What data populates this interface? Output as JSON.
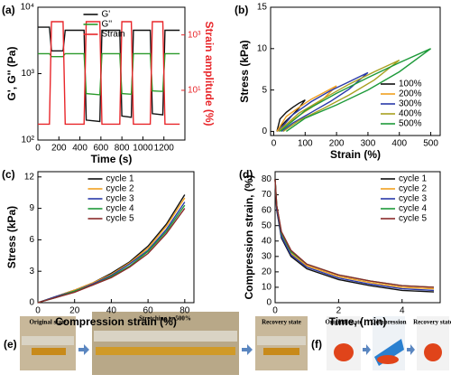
{
  "chart_data": [
    {
      "type": "line",
      "panel_label": "(a)",
      "xlabel": "Time (s)",
      "ylabel": "G', G'' (Pa)",
      "y2label": "Strain amplitude (%)",
      "xlim": [
        0,
        1400
      ],
      "xticks": [
        0,
        200,
        400,
        600,
        800,
        1000,
        1200
      ],
      "ylim": [
        100,
        10000
      ],
      "ylog": true,
      "yticks": [
        {
          "value": 100,
          "label": "10²"
        },
        {
          "value": 1000,
          "label": "10³"
        },
        {
          "value": 10000,
          "label": "10⁴"
        }
      ],
      "y2lim": [
        0.16,
        10000
      ],
      "y2log": true,
      "y2ticks": [
        {
          "value": 10,
          "label": "10¹"
        },
        {
          "value": 1000,
          "label": "10³"
        }
      ],
      "y2_color": "#e8262a",
      "legend": "upper center",
      "x": [
        0,
        110,
        130,
        240,
        260,
        440,
        460,
        590,
        610,
        780,
        800,
        890,
        910,
        1070,
        1090,
        1190,
        1210,
        1350
      ],
      "series": [
        {
          "name": "G'",
          "color": "#111111",
          "values": [
            5000,
            5000,
            2200,
            2200,
            4500,
            4500,
            200,
            190,
            4500,
            4500,
            230,
            220,
            4500,
            4500,
            250,
            240,
            4500,
            4500
          ]
        },
        {
          "name": "G''",
          "color": "#2a9a2a",
          "values": [
            2000,
            2000,
            1800,
            1800,
            2000,
            2000,
            500,
            480,
            2000,
            2000,
            500,
            490,
            2000,
            2000,
            550,
            540,
            2000,
            2000
          ]
        },
        {
          "name": "Strain",
          "color": "#e8262a",
          "axis": "y2",
          "values": [
            0.6,
            0.6,
            3000,
            3000,
            0.6,
            0.6,
            3000,
            3000,
            0.6,
            0.6,
            3000,
            3000,
            0.6,
            0.6,
            3000,
            3000,
            0.6,
            0.6
          ]
        }
      ]
    },
    {
      "type": "line",
      "panel_label": "(b)",
      "xlabel": "Strain (%)",
      "ylabel": "Stress (kPa)",
      "xlim": [
        -10,
        530
      ],
      "xticks": [
        0,
        100,
        200,
        300,
        400,
        500
      ],
      "ylim": [
        -0.5,
        15
      ],
      "yticks": [
        0,
        5,
        10,
        15
      ],
      "legend": "lower right",
      "series": [
        {
          "name": "100%",
          "color": "#111111",
          "x": [
            10,
            20,
            40,
            60,
            80,
            100,
            80,
            60,
            40,
            20,
            10
          ],
          "values": [
            0,
            1.5,
            2.3,
            2.9,
            3.4,
            3.8,
            2.8,
            2.0,
            1.3,
            0.5,
            0
          ]
        },
        {
          "name": "200%",
          "color": "#f0a020",
          "x": [
            10,
            40,
            80,
            120,
            160,
            200,
            160,
            120,
            80,
            40,
            15
          ],
          "values": [
            0,
            1.8,
            2.9,
            3.9,
            4.7,
            5.5,
            4.0,
            2.9,
            1.9,
            0.8,
            0
          ]
        },
        {
          "name": "300%",
          "color": "#2a3aa8",
          "x": [
            15,
            60,
            120,
            180,
            240,
            300,
            240,
            180,
            120,
            60,
            25
          ],
          "values": [
            0,
            2.0,
            3.6,
            4.9,
            6.0,
            7.1,
            5.1,
            3.6,
            2.3,
            1.0,
            0
          ]
        },
        {
          "name": "400%",
          "color": "#a8a020",
          "x": [
            15,
            80,
            160,
            240,
            320,
            400,
            320,
            240,
            160,
            80,
            30
          ],
          "values": [
            0,
            2.2,
            4.0,
            5.7,
            7.2,
            8.6,
            6.2,
            4.4,
            2.8,
            1.3,
            0
          ]
        },
        {
          "name": "500%",
          "color": "#1e9a3a",
          "x": [
            20,
            100,
            200,
            300,
            400,
            500,
            400,
            300,
            200,
            100,
            40
          ],
          "values": [
            0,
            2.5,
            4.6,
            6.5,
            8.3,
            10,
            7.2,
            5.0,
            3.2,
            1.6,
            0
          ]
        }
      ]
    },
    {
      "type": "line",
      "panel_label": "(c)",
      "xlabel": "Compression strain (%)",
      "ylabel": "Stress (kPa)",
      "xlim": [
        0,
        85
      ],
      "xticks": [
        0,
        20,
        40,
        60,
        80
      ],
      "ylim": [
        0,
        12.5
      ],
      "yticks": [
        0,
        3,
        6,
        9,
        12
      ],
      "legend": "upper center",
      "x": [
        0,
        10,
        20,
        30,
        40,
        50,
        60,
        70,
        80
      ],
      "series": [
        {
          "name": "cycle 1",
          "color": "#111111",
          "values": [
            0,
            0.6,
            1.2,
            1.9,
            2.8,
            3.9,
            5.4,
            7.5,
            10.3
          ]
        },
        {
          "name": "cycle 2",
          "color": "#f0a020",
          "values": [
            0,
            0.6,
            1.2,
            1.9,
            2.7,
            3.8,
            5.2,
            7.3,
            10.0
          ]
        },
        {
          "name": "cycle 3",
          "color": "#2a3aa8",
          "values": [
            0,
            0.6,
            1.1,
            1.8,
            2.6,
            3.7,
            5.0,
            7.0,
            9.6
          ]
        },
        {
          "name": "cycle 4",
          "color": "#1e9a3a",
          "values": [
            0,
            0.5,
            1.1,
            1.7,
            2.5,
            3.5,
            4.9,
            6.8,
            9.3
          ]
        },
        {
          "name": "cycle 5",
          "color": "#8a2a2a",
          "values": [
            0,
            0.5,
            1.0,
            1.7,
            2.4,
            3.4,
            4.7,
            6.6,
            9.0
          ]
        }
      ]
    },
    {
      "type": "line",
      "panel_label": "(d)",
      "xlabel": "Time, (min)",
      "ylabel": "Compression strain, (%)",
      "xlim": [
        0,
        5.2
      ],
      "xticks": [
        0,
        2,
        4
      ],
      "ylim": [
        0,
        85
      ],
      "yticks": [
        0,
        10,
        20,
        30,
        40,
        50,
        60,
        70,
        80
      ],
      "legend": "upper right",
      "x": [
        0,
        0.05,
        0.2,
        0.5,
        1,
        2,
        3,
        4,
        5
      ],
      "series": [
        {
          "name": "cycle 1",
          "color": "#111111",
          "values": [
            80,
            60,
            42,
            30,
            22,
            15,
            11,
            8,
            7
          ]
        },
        {
          "name": "cycle 2",
          "color": "#f0a020",
          "values": [
            80,
            62,
            44,
            32,
            24,
            17,
            13,
            10,
            9
          ]
        },
        {
          "name": "cycle 3",
          "color": "#2a3aa8",
          "values": [
            80,
            61,
            43,
            31,
            23,
            16,
            12,
            9,
            8
          ]
        },
        {
          "name": "cycle 4",
          "color": "#1e9a3a",
          "values": [
            80,
            63,
            45,
            33,
            25,
            18,
            14,
            11,
            10
          ]
        },
        {
          "name": "cycle 5",
          "color": "#8a2a2a",
          "values": [
            80,
            63,
            46,
            34,
            25,
            18,
            14,
            11,
            10
          ]
        }
      ]
    }
  ],
  "photos": {
    "e": {
      "label": "(e)",
      "captions": [
        "Original state",
        "Stretching to 500%",
        "Recovery state"
      ]
    },
    "f": {
      "label": "(f)",
      "captions": [
        "Original state",
        "Compression",
        "Recovery state"
      ]
    }
  }
}
